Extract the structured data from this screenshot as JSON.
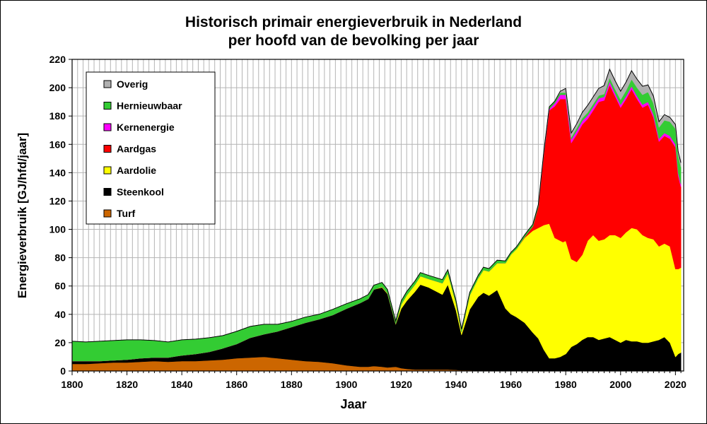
{
  "chart_data": {
    "type": "area",
    "stacked": true,
    "title": "Historisch primair energieverbruik in Nederland",
    "subtitle": "per hoofd van de bevolking per jaar",
    "xlabel": "Jaar",
    "ylabel": "Energieverbruik  [GJ/hfd/jaar]",
    "xlim": [
      1800,
      2023
    ],
    "ylim": [
      0,
      220
    ],
    "xticks": [
      1800,
      1820,
      1840,
      1860,
      1880,
      1900,
      1920,
      1940,
      1960,
      1980,
      2000,
      2020
    ],
    "yticks": [
      0,
      20,
      40,
      60,
      80,
      100,
      120,
      140,
      160,
      180,
      200,
      220
    ],
    "grid": "vertical minor lines every 2 years, horizontal at major ticks",
    "legend_position": "top-left",
    "x": [
      1800,
      1805,
      1810,
      1815,
      1820,
      1825,
      1830,
      1835,
      1840,
      1845,
      1850,
      1855,
      1860,
      1865,
      1870,
      1875,
      1880,
      1885,
      1890,
      1895,
      1900,
      1905,
      1908,
      1910,
      1913,
      1915,
      1918,
      1920,
      1922,
      1925,
      1927,
      1930,
      1935,
      1937,
      1940,
      1942,
      1945,
      1948,
      1950,
      1952,
      1955,
      1958,
      1960,
      1962,
      1965,
      1968,
      1970,
      1972,
      1974,
      1976,
      1978,
      1979,
      1980,
      1982,
      1984,
      1986,
      1988,
      1990,
      1992,
      1994,
      1996,
      1998,
      2000,
      2002,
      2004,
      2006,
      2008,
      2010,
      2012,
      2014,
      2016,
      2018,
      2020,
      2021,
      2022
    ],
    "series": [
      {
        "name": "Turf",
        "color": "#cc6600",
        "values": [
          5,
          5,
          5.5,
          6,
          6,
          6.5,
          7,
          6.5,
          7,
          7,
          7.5,
          8,
          9,
          9.5,
          10,
          9,
          8,
          7,
          6.5,
          5.5,
          4,
          3,
          3,
          3.5,
          3,
          2.5,
          3,
          2,
          1.5,
          1,
          1,
          1,
          1,
          1,
          0.8,
          0.5,
          0.5,
          0.3,
          0.3,
          0.3,
          0.2,
          0.2,
          0.2,
          0.1,
          0.1,
          0.1,
          0,
          0,
          0,
          0,
          0,
          0,
          0,
          0,
          0,
          0,
          0,
          0,
          0,
          0,
          0,
          0,
          0,
          0,
          0,
          0,
          0,
          0,
          0,
          0,
          0,
          0,
          0,
          0,
          0
        ]
      },
      {
        "name": "Steenkool",
        "color": "#000000",
        "values": [
          2,
          2,
          1.5,
          1.5,
          2,
          2.5,
          2.5,
          3,
          4,
          5,
          6,
          8,
          10,
          14,
          16,
          19,
          23,
          27,
          30,
          34,
          40,
          45,
          48,
          54,
          56,
          52,
          30,
          42,
          48,
          55,
          60,
          58,
          53,
          60,
          42,
          25,
          43,
          52,
          55,
          53,
          57,
          44,
          40,
          38,
          34,
          27,
          23,
          15,
          9,
          9,
          10,
          11,
          12,
          17,
          19,
          22,
          24,
          24,
          22,
          23,
          24,
          22,
          20,
          22,
          21,
          21,
          20,
          20,
          21,
          22,
          24,
          20,
          10,
          12,
          13
        ]
      },
      {
        "name": "Aardolie",
        "color": "#ffff00",
        "values": [
          0,
          0,
          0,
          0,
          0,
          0,
          0,
          0,
          0,
          0,
          0,
          0,
          0,
          0,
          0,
          0,
          0,
          0,
          0,
          0,
          0,
          0,
          0,
          0,
          0.5,
          0.5,
          0.3,
          3,
          4,
          5,
          6,
          6,
          8,
          8,
          5,
          2,
          10,
          13,
          16,
          17,
          19,
          32,
          42,
          48,
          60,
          72,
          78,
          88,
          95,
          85,
          82,
          80,
          80,
          62,
          58,
          60,
          68,
          72,
          70,
          70,
          72,
          74,
          74,
          76,
          80,
          79,
          76,
          74,
          72,
          66,
          66,
          68,
          62,
          60,
          60
        ]
      },
      {
        "name": "Aardgas",
        "color": "#ff0000",
        "values": [
          0,
          0,
          0,
          0,
          0,
          0,
          0,
          0,
          0,
          0,
          0,
          0,
          0,
          0,
          0,
          0,
          0,
          0,
          0,
          0,
          0,
          0,
          0,
          0,
          0,
          0,
          0,
          0,
          0,
          0,
          0,
          0,
          0,
          0,
          0,
          0,
          0,
          0,
          0,
          0,
          0,
          0,
          0,
          0,
          0.5,
          3,
          15,
          50,
          80,
          93,
          100,
          101,
          100,
          82,
          90,
          92,
          86,
          88,
          98,
          98,
          106,
          98,
          92,
          94,
          98,
          92,
          90,
          94,
          86,
          74,
          76,
          76,
          86,
          66,
          57
        ]
      },
      {
        "name": "Kernenergie",
        "color": "#ff00ff",
        "values": [
          0,
          0,
          0,
          0,
          0,
          0,
          0,
          0,
          0,
          0,
          0,
          0,
          0,
          0,
          0,
          0,
          0,
          0,
          0,
          0,
          0,
          0,
          0,
          0,
          0,
          0,
          0,
          0,
          0,
          0,
          0,
          0,
          0,
          0,
          0,
          0,
          0,
          0,
          0,
          0,
          0,
          0,
          0,
          0,
          0,
          0,
          0,
          0.5,
          1,
          2,
          3,
          3,
          3,
          2.5,
          2.5,
          2.5,
          2.5,
          2.5,
          2.5,
          2.5,
          2.5,
          2,
          2,
          2,
          2,
          2,
          2,
          2,
          2,
          2,
          2,
          2,
          2,
          2,
          2
        ]
      },
      {
        "name": "Hernieuwbaar",
        "color": "#33cc33",
        "values": [
          14,
          13.5,
          14,
          14,
          14,
          13,
          12,
          11,
          11,
          10.5,
          10,
          9,
          9,
          8,
          7,
          5,
          4,
          4,
          3.5,
          4,
          3.5,
          3,
          3,
          3,
          3,
          2.5,
          2,
          2.5,
          2.5,
          2.5,
          2.5,
          2.5,
          2.5,
          2.5,
          2,
          2,
          2,
          2,
          2,
          2,
          2,
          1.5,
          1.5,
          1.5,
          1.5,
          1.5,
          1.5,
          1.5,
          1.5,
          1.5,
          1.5,
          1.5,
          1.5,
          1.5,
          2,
          2,
          2,
          2,
          2,
          2,
          2.5,
          3,
          3.5,
          4,
          5,
          6,
          7,
          7,
          8,
          8,
          9,
          10,
          11,
          12,
          12
        ]
      },
      {
        "name": "Overig",
        "color": "#b0b0b0",
        "values": [
          0,
          0,
          0,
          0,
          0,
          0,
          0,
          0,
          0,
          0,
          0,
          0,
          0,
          0,
          0,
          0,
          0,
          0,
          0,
          0,
          0,
          0,
          0,
          0,
          0,
          0,
          0,
          0,
          0,
          0,
          0,
          0,
          0,
          0,
          0,
          0,
          0,
          0,
          0,
          0,
          0,
          0,
          0,
          0,
          0,
          0,
          0,
          0,
          0,
          0,
          1,
          2,
          3,
          3,
          3,
          4,
          5,
          5,
          5,
          6,
          6,
          6,
          6,
          6,
          6,
          6,
          6,
          5,
          5,
          4,
          4,
          3,
          3,
          3,
          3
        ]
      }
    ],
    "legend_order": [
      "Overig",
      "Hernieuwbaar",
      "Kernenergie",
      "Aardgas",
      "Aardolie",
      "Steenkool",
      "Turf"
    ]
  }
}
